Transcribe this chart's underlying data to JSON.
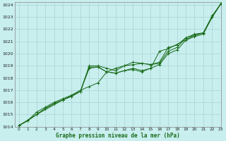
{
  "xlabel": "Graphe pression niveau de la mer (hPa)",
  "bg_color": "#c8eeee",
  "grid_color": "#b0d8d8",
  "line_color": "#1a6b1a",
  "xlim": [
    -0.5,
    23
  ],
  "ylim": [
    1014,
    1024.2
  ],
  "yticks": [
    1014,
    1015,
    1016,
    1017,
    1018,
    1019,
    1020,
    1021,
    1022,
    1023,
    1024
  ],
  "xticks": [
    0,
    1,
    2,
    3,
    4,
    5,
    6,
    7,
    8,
    9,
    10,
    11,
    12,
    13,
    14,
    15,
    16,
    17,
    18,
    19,
    20,
    21,
    22,
    23
  ],
  "series": [
    {
      "x": [
        0,
        1,
        2,
        3,
        4,
        5,
        6,
        7,
        8,
        9,
        10,
        11,
        12,
        13,
        14,
        15,
        16,
        17,
        18,
        19,
        20,
        21,
        22,
        23
      ],
      "y": [
        1014.1,
        1014.5,
        1015.0,
        1015.5,
        1015.9,
        1016.2,
        1016.5,
        1016.9,
        1019.0,
        1019.0,
        1018.8,
        1018.6,
        1019.0,
        1019.3,
        1019.2,
        1019.1,
        1019.2,
        1020.2,
        1020.5,
        1021.3,
        1021.5,
        1021.7,
        1023.0,
        1024.1
      ]
    },
    {
      "x": [
        0,
        1,
        2,
        3,
        4,
        5,
        6,
        7,
        8,
        9,
        10,
        11,
        12,
        13,
        14,
        15,
        16,
        17,
        18,
        19,
        20,
        21,
        22,
        23
      ],
      "y": [
        1014.1,
        1014.5,
        1015.0,
        1015.5,
        1015.9,
        1016.2,
        1016.5,
        1016.9,
        1018.8,
        1018.9,
        1018.5,
        1018.4,
        1018.6,
        1018.8,
        1018.6,
        1018.8,
        1019.1,
        1020.0,
        1020.3,
        1021.1,
        1021.4,
        1021.6,
        1023.0,
        1024.1
      ]
    },
    {
      "x": [
        0,
        1,
        2,
        3,
        4,
        5,
        6,
        7,
        8,
        9,
        10,
        11,
        12,
        13,
        14,
        15,
        16,
        17,
        18,
        19,
        20,
        21,
        22,
        23
      ],
      "y": [
        1014.1,
        1014.5,
        1015.2,
        1015.6,
        1016.0,
        1016.3,
        1016.6,
        1017.0,
        1017.3,
        1017.6,
        1018.5,
        1018.8,
        1019.0,
        1019.1,
        1019.2,
        1019.1,
        1019.3,
        1020.5,
        1020.7,
        1021.3,
        1021.6,
        1021.7,
        1023.1,
        1024.1
      ]
    },
    {
      "x": [
        0,
        2,
        5,
        7,
        8,
        9,
        10,
        11,
        12,
        13,
        14,
        15,
        16,
        17,
        20,
        21,
        22,
        23
      ],
      "y": [
        1014.1,
        1015.0,
        1016.2,
        1016.9,
        1018.9,
        1018.9,
        1018.5,
        1018.4,
        1018.6,
        1018.7,
        1018.5,
        1018.8,
        1020.2,
        1020.4,
        1021.5,
        1021.7,
        1023.0,
        1024.1
      ]
    }
  ]
}
